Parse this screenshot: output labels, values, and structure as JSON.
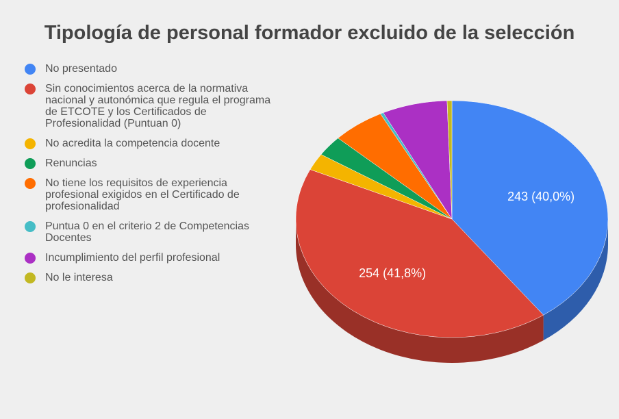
{
  "chart_data": {
    "type": "pie3d",
    "title": "Tipología de personal formador excluido de la selección",
    "categories": [
      "No presentado",
      "Sin conocimientos acerca de la normativa nacional y autonómica que regula el programa de ETCOTE y los Certificados de Profesionalidad (Puntuan 0)",
      "No acredita la competencia docente",
      "Renuncias",
      "No tiene los requisitos de experiencia profesional exigidos en el Certificado de profesionalidad",
      "Puntua 0 en el criterio 2 de Competencias Docentes",
      "Incumplimiento del perfil profesional",
      "No le interesa"
    ],
    "values": [
      243,
      254,
      14,
      17,
      33,
      2,
      41,
      3
    ],
    "value_labels": [
      "243 (40,0%)",
      "254 (41,8%)",
      null,
      null,
      null,
      null,
      null,
      null
    ],
    "colors": [
      "#4285f4",
      "#db4437",
      "#f4b400",
      "#0f9d58",
      "#ff6d00",
      "#46bdc6",
      "#ab30c4",
      "#c2b822"
    ],
    "legend": "left"
  }
}
